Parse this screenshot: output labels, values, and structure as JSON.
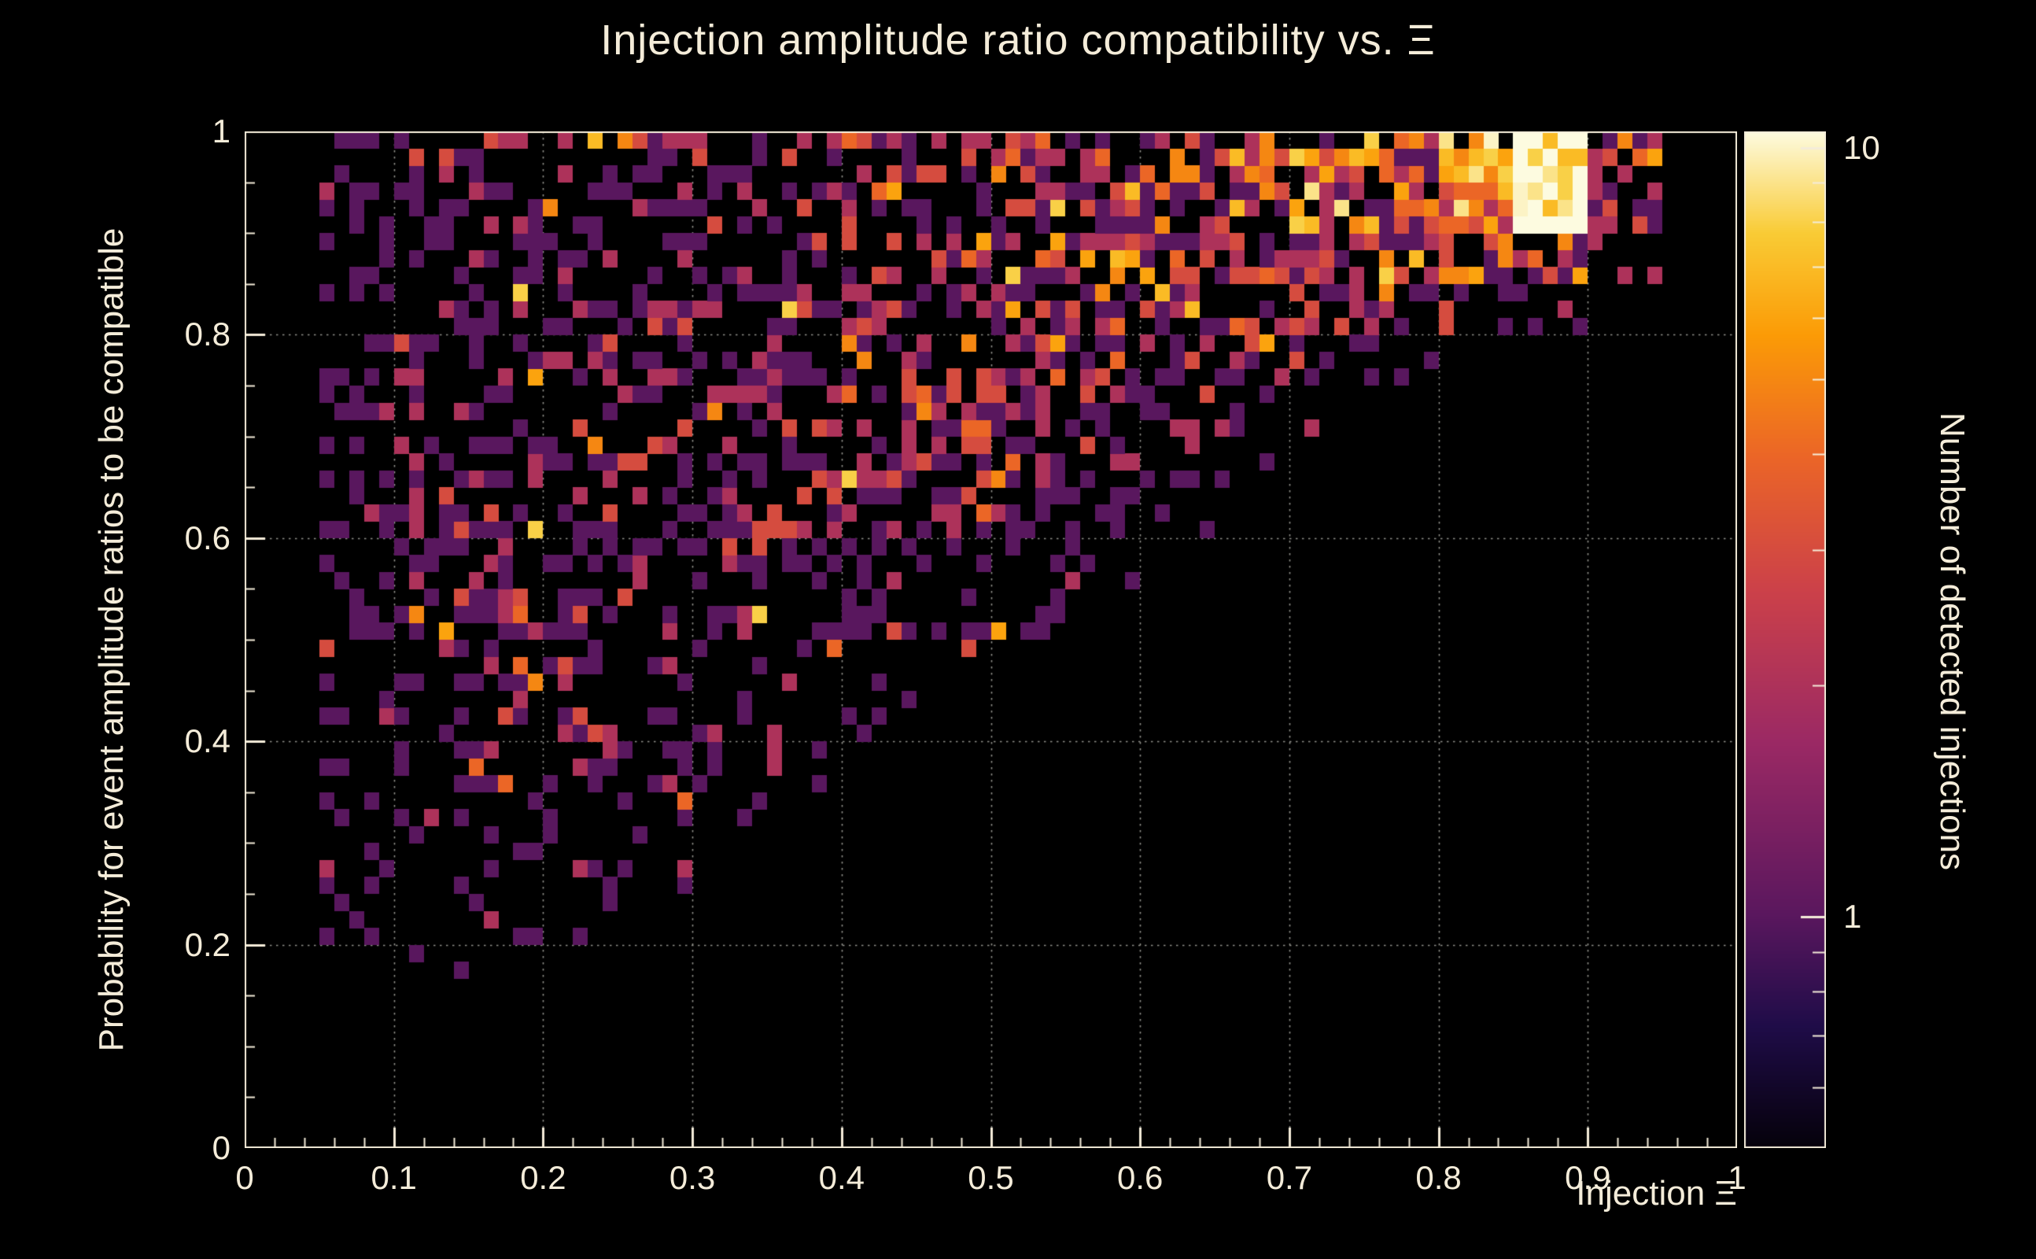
{
  "chart_data": {
    "type": "heatmap",
    "title": "Injection amplitude ratio compatibility vs.  Ξ",
    "xlabel": "Injection Ξ",
    "ylabel": "Probability for event amplitude ratios to be compatible",
    "xlim": [
      0,
      1
    ],
    "ylim": [
      0,
      1
    ],
    "background": "#000000",
    "accent_text_color": "#f4ecd9",
    "x_ticks": [
      {
        "v": 0,
        "label": "0"
      },
      {
        "v": 0.1,
        "label": "0.1"
      },
      {
        "v": 0.2,
        "label": "0.2"
      },
      {
        "v": 0.3,
        "label": "0.3"
      },
      {
        "v": 0.4,
        "label": "0.4"
      },
      {
        "v": 0.5,
        "label": "0.5"
      },
      {
        "v": 0.6,
        "label": "0.6"
      },
      {
        "v": 0.7,
        "label": "0.7"
      },
      {
        "v": 0.8,
        "label": "0.8"
      },
      {
        "v": 0.9,
        "label": "0.9"
      },
      {
        "v": 1,
        "label": "1"
      }
    ],
    "x_minor_step": 0.02,
    "y_ticks": [
      {
        "v": 0,
        "label": "0"
      },
      {
        "v": 0.2,
        "label": "0.2"
      },
      {
        "v": 0.4,
        "label": "0.4"
      },
      {
        "v": 0.6,
        "label": "0.6"
      },
      {
        "v": 0.8,
        "label": "0.8"
      },
      {
        "v": 1,
        "label": "1"
      }
    ],
    "y_minor_step": 0.05,
    "grid": {
      "x_values": [
        0.1,
        0.2,
        0.3,
        0.4,
        0.5,
        0.6,
        0.7,
        0.8,
        0.9
      ],
      "y_values": [
        0.2,
        0.4,
        0.6,
        0.8,
        1.0
      ],
      "style": "dotted",
      "color": "#8f8f89"
    },
    "bins": {
      "nx": 100,
      "ny": 60
    },
    "colorbar": {
      "label": "Number of detected injections",
      "scale": "log",
      "range": [
        0.5,
        10.5
      ],
      "ticks": [
        {
          "v": 1,
          "label": "1"
        },
        {
          "v": 10,
          "label": "10"
        }
      ],
      "minor_ticks": [
        0.6,
        0.7,
        0.8,
        0.9,
        2,
        3,
        4,
        5,
        6,
        7,
        8,
        9
      ]
    },
    "colormap_stops": [
      [
        0.0,
        "#05010a"
      ],
      [
        0.12,
        "#1f0c48"
      ],
      [
        0.23,
        "#5a175e"
      ],
      [
        0.4,
        "#9b2964"
      ],
      [
        0.55,
        "#cc4149"
      ],
      [
        0.68,
        "#eb6527"
      ],
      [
        0.8,
        "#fb9b06"
      ],
      [
        0.9,
        "#f9cb35"
      ],
      [
        1.0,
        "#fdfbe0"
      ]
    ],
    "density_grid": {
      "note": "Coarse 20x20 occupancy/intensity map read from the figure (0=empty .. 9=brightest cluster). Rows listed from top (y=0.95-1.0) to bottom (y=0-0.05); columns from x=0 to x=1 in steps of 0.05. Counts rise toward top-right; brightest hotspot near x=0.85, y=0.95.",
      "rows": [
        [
          0,
          2,
          3,
          3,
          3,
          3,
          3,
          3,
          4,
          4,
          5,
          5,
          5,
          5,
          6,
          6,
          8,
          9,
          5,
          0
        ],
        [
          0,
          2,
          2,
          3,
          2,
          3,
          3,
          3,
          3,
          4,
          4,
          5,
          5,
          5,
          6,
          6,
          7,
          9,
          4,
          0
        ],
        [
          0,
          2,
          2,
          2,
          3,
          2,
          3,
          3,
          3,
          4,
          5,
          5,
          6,
          5,
          5,
          5,
          6,
          5,
          2,
          0
        ],
        [
          0,
          2,
          2,
          3,
          2,
          3,
          3,
          3,
          3,
          4,
          4,
          5,
          5,
          5,
          4,
          3,
          2,
          1,
          0,
          0
        ],
        [
          0,
          2,
          3,
          2,
          3,
          3,
          3,
          4,
          4,
          4,
          5,
          5,
          4,
          3,
          2,
          1,
          0,
          0,
          0,
          0
        ],
        [
          0,
          2,
          2,
          3,
          3,
          3,
          4,
          4,
          4,
          5,
          4,
          4,
          3,
          2,
          1,
          0,
          0,
          0,
          0,
          0
        ],
        [
          0,
          2,
          3,
          3,
          3,
          3,
          3,
          4,
          4,
          4,
          4,
          3,
          2,
          1,
          0,
          0,
          0,
          0,
          0,
          0
        ],
        [
          0,
          2,
          3,
          3,
          3,
          3,
          3,
          4,
          3,
          3,
          3,
          2,
          1,
          0,
          0,
          0,
          0,
          0,
          0,
          0
        ],
        [
          0,
          2,
          3,
          3,
          3,
          3,
          3,
          3,
          3,
          2,
          1,
          1,
          0,
          0,
          0,
          0,
          0,
          0,
          0,
          0
        ],
        [
          0,
          2,
          3,
          3,
          3,
          3,
          2,
          2,
          2,
          1,
          1,
          0,
          0,
          0,
          0,
          0,
          0,
          0,
          0,
          0
        ],
        [
          0,
          2,
          2,
          3,
          3,
          2,
          2,
          2,
          1,
          1,
          0,
          0,
          0,
          0,
          0,
          0,
          0,
          0,
          0,
          0
        ],
        [
          0,
          2,
          2,
          3,
          2,
          2,
          2,
          1,
          1,
          0,
          0,
          0,
          0,
          0,
          0,
          0,
          0,
          0,
          0,
          0
        ],
        [
          0,
          1,
          2,
          2,
          2,
          1,
          1,
          1,
          0,
          0,
          0,
          0,
          0,
          0,
          0,
          0,
          0,
          0,
          0,
          0
        ],
        [
          0,
          1,
          2,
          2,
          1,
          1,
          1,
          0,
          0,
          0,
          0,
          0,
          0,
          0,
          0,
          0,
          0,
          0,
          0,
          0
        ],
        [
          0,
          1,
          1,
          2,
          1,
          1,
          0,
          0,
          0,
          0,
          0,
          0,
          0,
          0,
          0,
          0,
          0,
          0,
          0,
          0
        ],
        [
          0,
          1,
          1,
          1,
          1,
          0,
          0,
          0,
          0,
          0,
          0,
          0,
          0,
          0,
          0,
          0,
          0,
          0,
          0,
          0
        ],
        [
          0,
          1,
          1,
          0,
          0,
          0,
          0,
          0,
          0,
          0,
          0,
          0,
          0,
          0,
          0,
          0,
          0,
          0,
          0,
          0
        ],
        [
          0,
          0,
          0,
          0,
          0,
          0,
          0,
          0,
          0,
          0,
          0,
          0,
          0,
          0,
          0,
          0,
          0,
          0,
          0,
          0
        ],
        [
          0,
          0,
          0,
          0,
          0,
          0,
          0,
          0,
          0,
          0,
          0,
          0,
          0,
          0,
          0,
          0,
          0,
          0,
          0,
          0
        ],
        [
          0,
          0,
          0,
          0,
          0,
          0,
          0,
          0,
          0,
          0,
          0,
          0,
          0,
          0,
          0,
          0,
          0,
          0,
          0,
          0
        ]
      ]
    },
    "fill_prob_by_level": [
      0,
      0.18,
      0.3,
      0.4,
      0.52,
      0.62,
      0.72,
      0.82,
      0.9,
      0.95
    ],
    "seed": 1337
  }
}
